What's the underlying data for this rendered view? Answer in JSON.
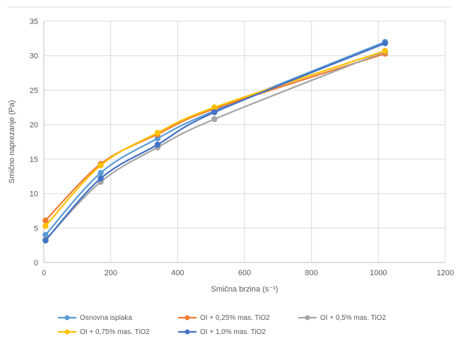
{
  "chart_data": {
    "type": "scatter",
    "xlabel": "Smična brzina (s⁻¹)",
    "ylabel": "Smično naprezanje (Pa)",
    "xlim": [
      0,
      1200
    ],
    "ylim": [
      0,
      35
    ],
    "xticks": [
      0,
      200,
      400,
      600,
      800,
      1000,
      1200
    ],
    "yticks": [
      0,
      5,
      10,
      15,
      20,
      25,
      30,
      35
    ],
    "grid": true,
    "legend_position": "bottom",
    "series": [
      {
        "name": "Osnovna isplaka",
        "color": "#5b9bd5",
        "x": [
          5.1,
          170,
          340,
          510,
          1020
        ],
        "y": [
          4.0,
          13.0,
          18.0,
          22.0,
          32.0
        ]
      },
      {
        "name": "OI + 0,25% mas. TiO2",
        "color": "#ed7d31",
        "x": [
          5.1,
          170,
          340,
          510,
          1020
        ],
        "y": [
          6.1,
          14.3,
          18.6,
          22.3,
          30.3
        ]
      },
      {
        "name": "OI + 0,5% mas. TiO2",
        "color": "#a5a5a5",
        "x": [
          5.1,
          170,
          340,
          510,
          1020
        ],
        "y": [
          3.3,
          11.7,
          16.7,
          20.8,
          30.6
        ]
      },
      {
        "name": "OI + 0,75% mas. TiO2",
        "color": "#ffc000",
        "x": [
          5.1,
          170,
          340,
          510,
          1020
        ],
        "y": [
          5.3,
          14.1,
          18.8,
          22.5,
          30.7
        ]
      },
      {
        "name": "OI + 1,0% mas. TiO2",
        "color": "#4472c4",
        "x": [
          5.1,
          170,
          340,
          510,
          1020
        ],
        "y": [
          3.2,
          12.2,
          17.1,
          21.8,
          31.8
        ]
      }
    ]
  }
}
